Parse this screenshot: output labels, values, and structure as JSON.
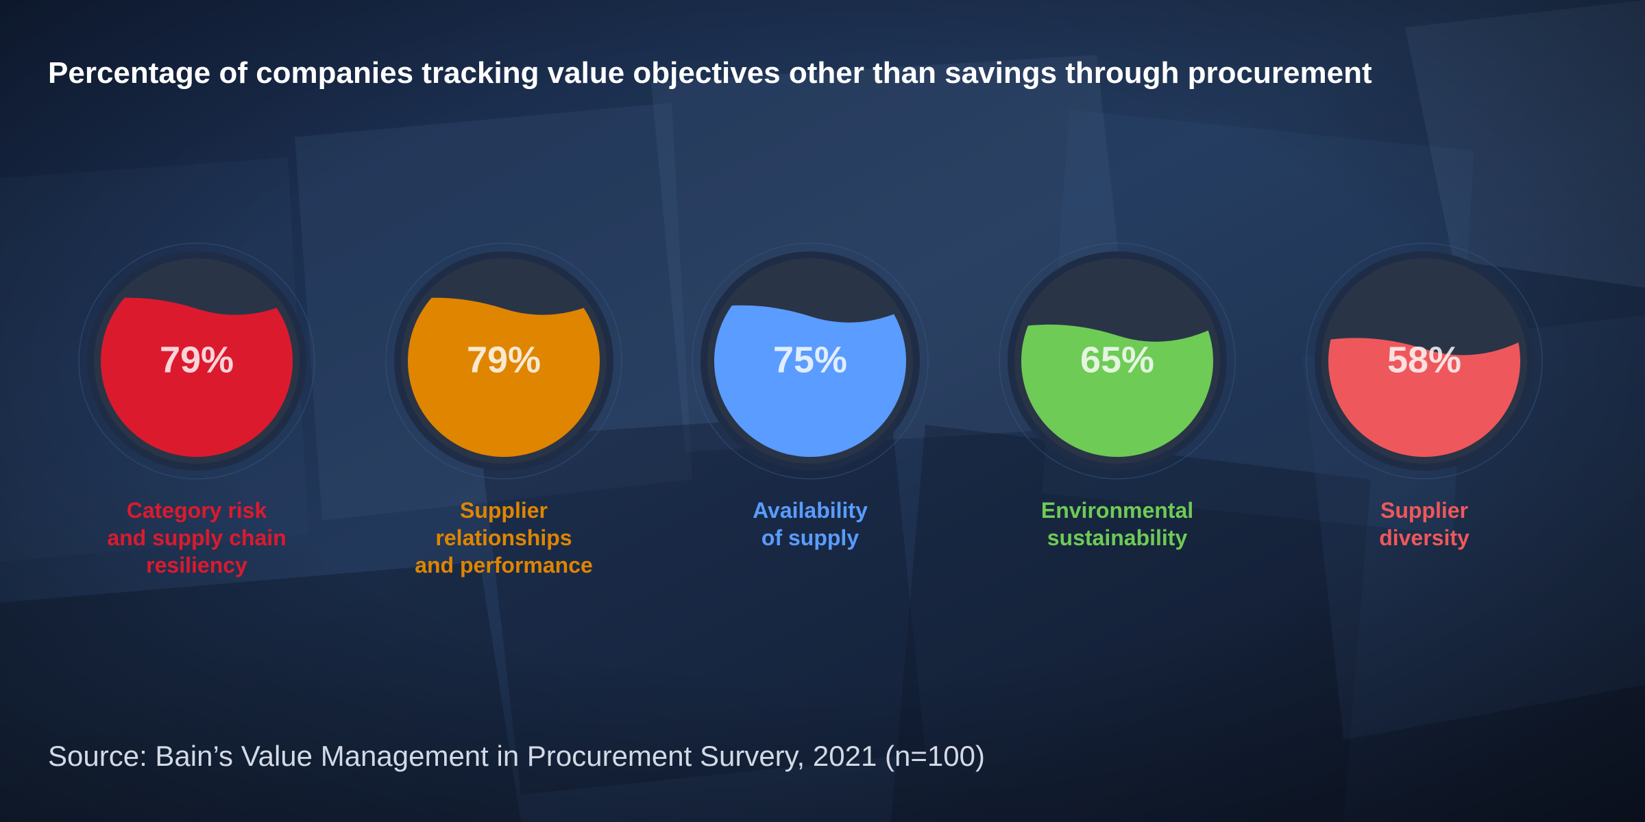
{
  "colors": {
    "background": "#14213a",
    "category_risk": "#dc1a2e",
    "supplier_relationships": "#df8500",
    "availability": "#5a9cff",
    "environmental": "#6ecb55",
    "supplier_diversity": "#ee585c"
  },
  "chart_data": {
    "type": "gauge",
    "title": "Percentage of companies tracking value objectives other than savings through procurement",
    "source": "Source: Bain’s Value Management in Procurement Survery, 2021 (n=100)",
    "unit": "%",
    "ylim": [
      0,
      100
    ],
    "items": [
      {
        "label": "Category risk\nand supply chain\nresiliency",
        "value": 79,
        "value_label": "79%",
        "color": "#dc1a2e"
      },
      {
        "label": "Supplier\nrelationships\nand performance",
        "value": 79,
        "value_label": "79%",
        "color": "#df8500"
      },
      {
        "label": "Availability\nof supply",
        "value": 75,
        "value_label": "75%",
        "color": "#5a9cff"
      },
      {
        "label": "Environmental\nsustainability",
        "value": 65,
        "value_label": "65%",
        "color": "#6ecb55"
      },
      {
        "label": "Supplier\ndiversity",
        "value": 58,
        "value_label": "58%",
        "color": "#ee585c"
      }
    ]
  }
}
